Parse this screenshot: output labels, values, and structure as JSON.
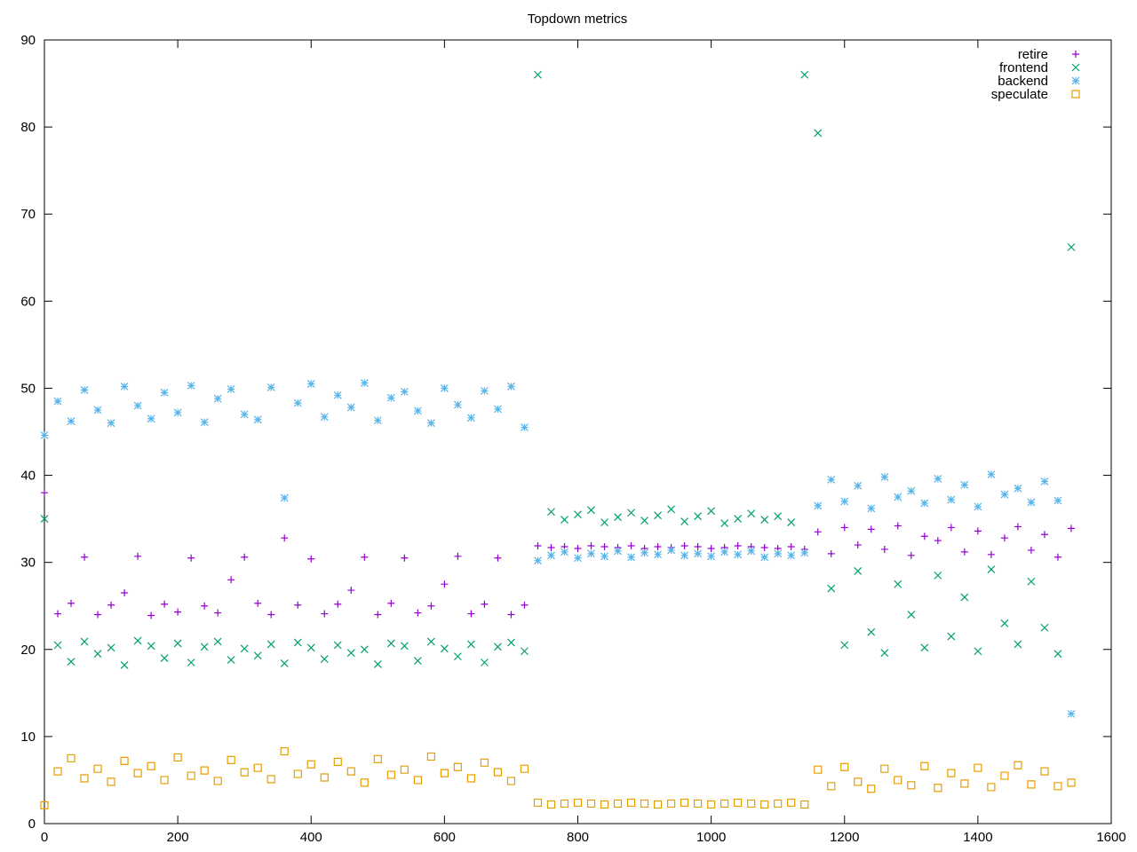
{
  "chart_data": {
    "type": "scatter",
    "title": "Topdown metrics",
    "xlabel": "",
    "ylabel": "",
    "xlim": [
      0,
      1600
    ],
    "ylim": [
      0,
      90
    ],
    "xticks": [
      0,
      200,
      400,
      600,
      800,
      1000,
      1200,
      1400,
      1600
    ],
    "yticks": [
      0,
      10,
      20,
      30,
      40,
      50,
      60,
      70,
      80,
      90
    ],
    "grid": false,
    "legend_position": "top-right",
    "x_start": 0,
    "x_step": 20,
    "series": [
      {
        "name": "retire",
        "marker": "plus",
        "color": "#9400D3",
        "values": [
          38.0,
          24.1,
          25.3,
          30.6,
          24.0,
          25.1,
          26.5,
          30.7,
          23.9,
          25.2,
          24.3,
          30.5,
          25.0,
          24.2,
          28.0,
          30.6,
          25.3,
          24.0,
          32.8,
          25.1,
          30.4,
          24.1,
          25.2,
          26.8,
          30.6,
          24.0,
          25.3,
          30.5,
          24.2,
          25.0,
          27.5,
          30.7,
          24.1,
          25.2,
          30.5,
          24.0,
          25.1,
          31.9,
          31.7,
          31.8,
          31.6,
          31.9,
          31.8,
          31.7,
          31.9,
          31.6,
          31.8,
          31.7,
          31.9,
          31.8,
          31.6,
          31.7,
          31.9,
          31.8,
          31.7,
          31.6,
          31.8,
          31.5,
          33.5,
          31.0,
          34.0,
          32.0,
          33.8,
          31.5,
          34.2,
          30.8,
          33.0,
          32.5,
          34.0,
          31.2,
          33.6,
          30.9,
          32.8,
          34.1,
          31.4,
          33.2,
          30.6,
          33.9
        ]
      },
      {
        "name": "frontend",
        "marker": "cross",
        "color": "#009E73",
        "values": [
          35.0,
          20.5,
          18.6,
          20.9,
          19.5,
          20.2,
          18.2,
          21.0,
          20.4,
          19.0,
          20.7,
          18.5,
          20.3,
          20.9,
          18.8,
          20.1,
          19.3,
          20.6,
          18.4,
          20.8,
          20.2,
          18.9,
          20.5,
          19.6,
          20.0,
          18.3,
          20.7,
          20.4,
          18.7,
          20.9,
          20.1,
          19.2,
          20.6,
          18.5,
          20.3,
          20.8,
          19.8,
          86.0,
          35.8,
          34.9,
          35.5,
          36.0,
          34.6,
          35.2,
          35.7,
          34.8,
          35.4,
          36.1,
          34.7,
          35.3,
          35.9,
          34.5,
          35.0,
          35.6,
          34.9,
          35.3,
          34.6,
          86.0,
          79.3,
          27.0,
          20.5,
          29.0,
          22.0,
          19.6,
          27.5,
          24.0,
          20.2,
          28.5,
          21.5,
          26.0,
          19.8,
          29.2,
          23.0,
          20.6,
          27.8,
          22.5,
          19.5,
          66.2
        ]
      },
      {
        "name": "backend",
        "marker": "star",
        "color": "#56B4E9",
        "values": [
          44.6,
          48.5,
          46.2,
          49.8,
          47.5,
          46.0,
          50.2,
          48.0,
          46.5,
          49.5,
          47.2,
          50.3,
          46.1,
          48.8,
          49.9,
          47.0,
          46.4,
          50.1,
          37.4,
          48.3,
          50.5,
          46.7,
          49.2,
          47.8,
          50.6,
          46.3,
          48.9,
          49.6,
          47.4,
          46.0,
          50.0,
          48.1,
          46.6,
          49.7,
          47.6,
          50.2,
          45.5,
          30.2,
          30.8,
          31.2,
          30.5,
          31.0,
          30.7,
          31.3,
          30.6,
          31.1,
          30.9,
          31.4,
          30.8,
          31.0,
          30.7,
          31.2,
          30.9,
          31.3,
          30.6,
          31.0,
          30.8,
          31.1,
          36.5,
          39.5,
          37.0,
          38.8,
          36.2,
          39.8,
          37.5,
          38.2,
          36.8,
          39.6,
          37.2,
          38.9,
          36.4,
          40.1,
          37.8,
          38.5,
          36.9,
          39.3,
          37.1,
          12.6
        ]
      },
      {
        "name": "speculate",
        "marker": "square",
        "color": "#E69F00",
        "values": [
          2.1,
          6.0,
          7.5,
          5.2,
          6.3,
          4.8,
          7.2,
          5.8,
          6.6,
          5.0,
          7.6,
          5.5,
          6.1,
          4.9,
          7.3,
          5.9,
          6.4,
          5.1,
          8.3,
          5.7,
          6.8,
          5.3,
          7.1,
          6.0,
          4.7,
          7.4,
          5.6,
          6.2,
          5.0,
          7.7,
          5.8,
          6.5,
          5.2,
          7.0,
          5.9,
          4.9,
          6.3,
          2.4,
          2.2,
          2.3,
          2.4,
          2.3,
          2.2,
          2.3,
          2.4,
          2.3,
          2.2,
          2.3,
          2.4,
          2.3,
          2.2,
          2.3,
          2.4,
          2.3,
          2.2,
          2.3,
          2.4,
          2.2,
          6.2,
          4.3,
          6.5,
          4.8,
          4.0,
          6.3,
          5.0,
          4.4,
          6.6,
          4.1,
          5.8,
          4.6,
          6.4,
          4.2,
          5.5,
          6.7,
          4.5,
          6.0,
          4.3,
          4.7
        ]
      }
    ]
  }
}
